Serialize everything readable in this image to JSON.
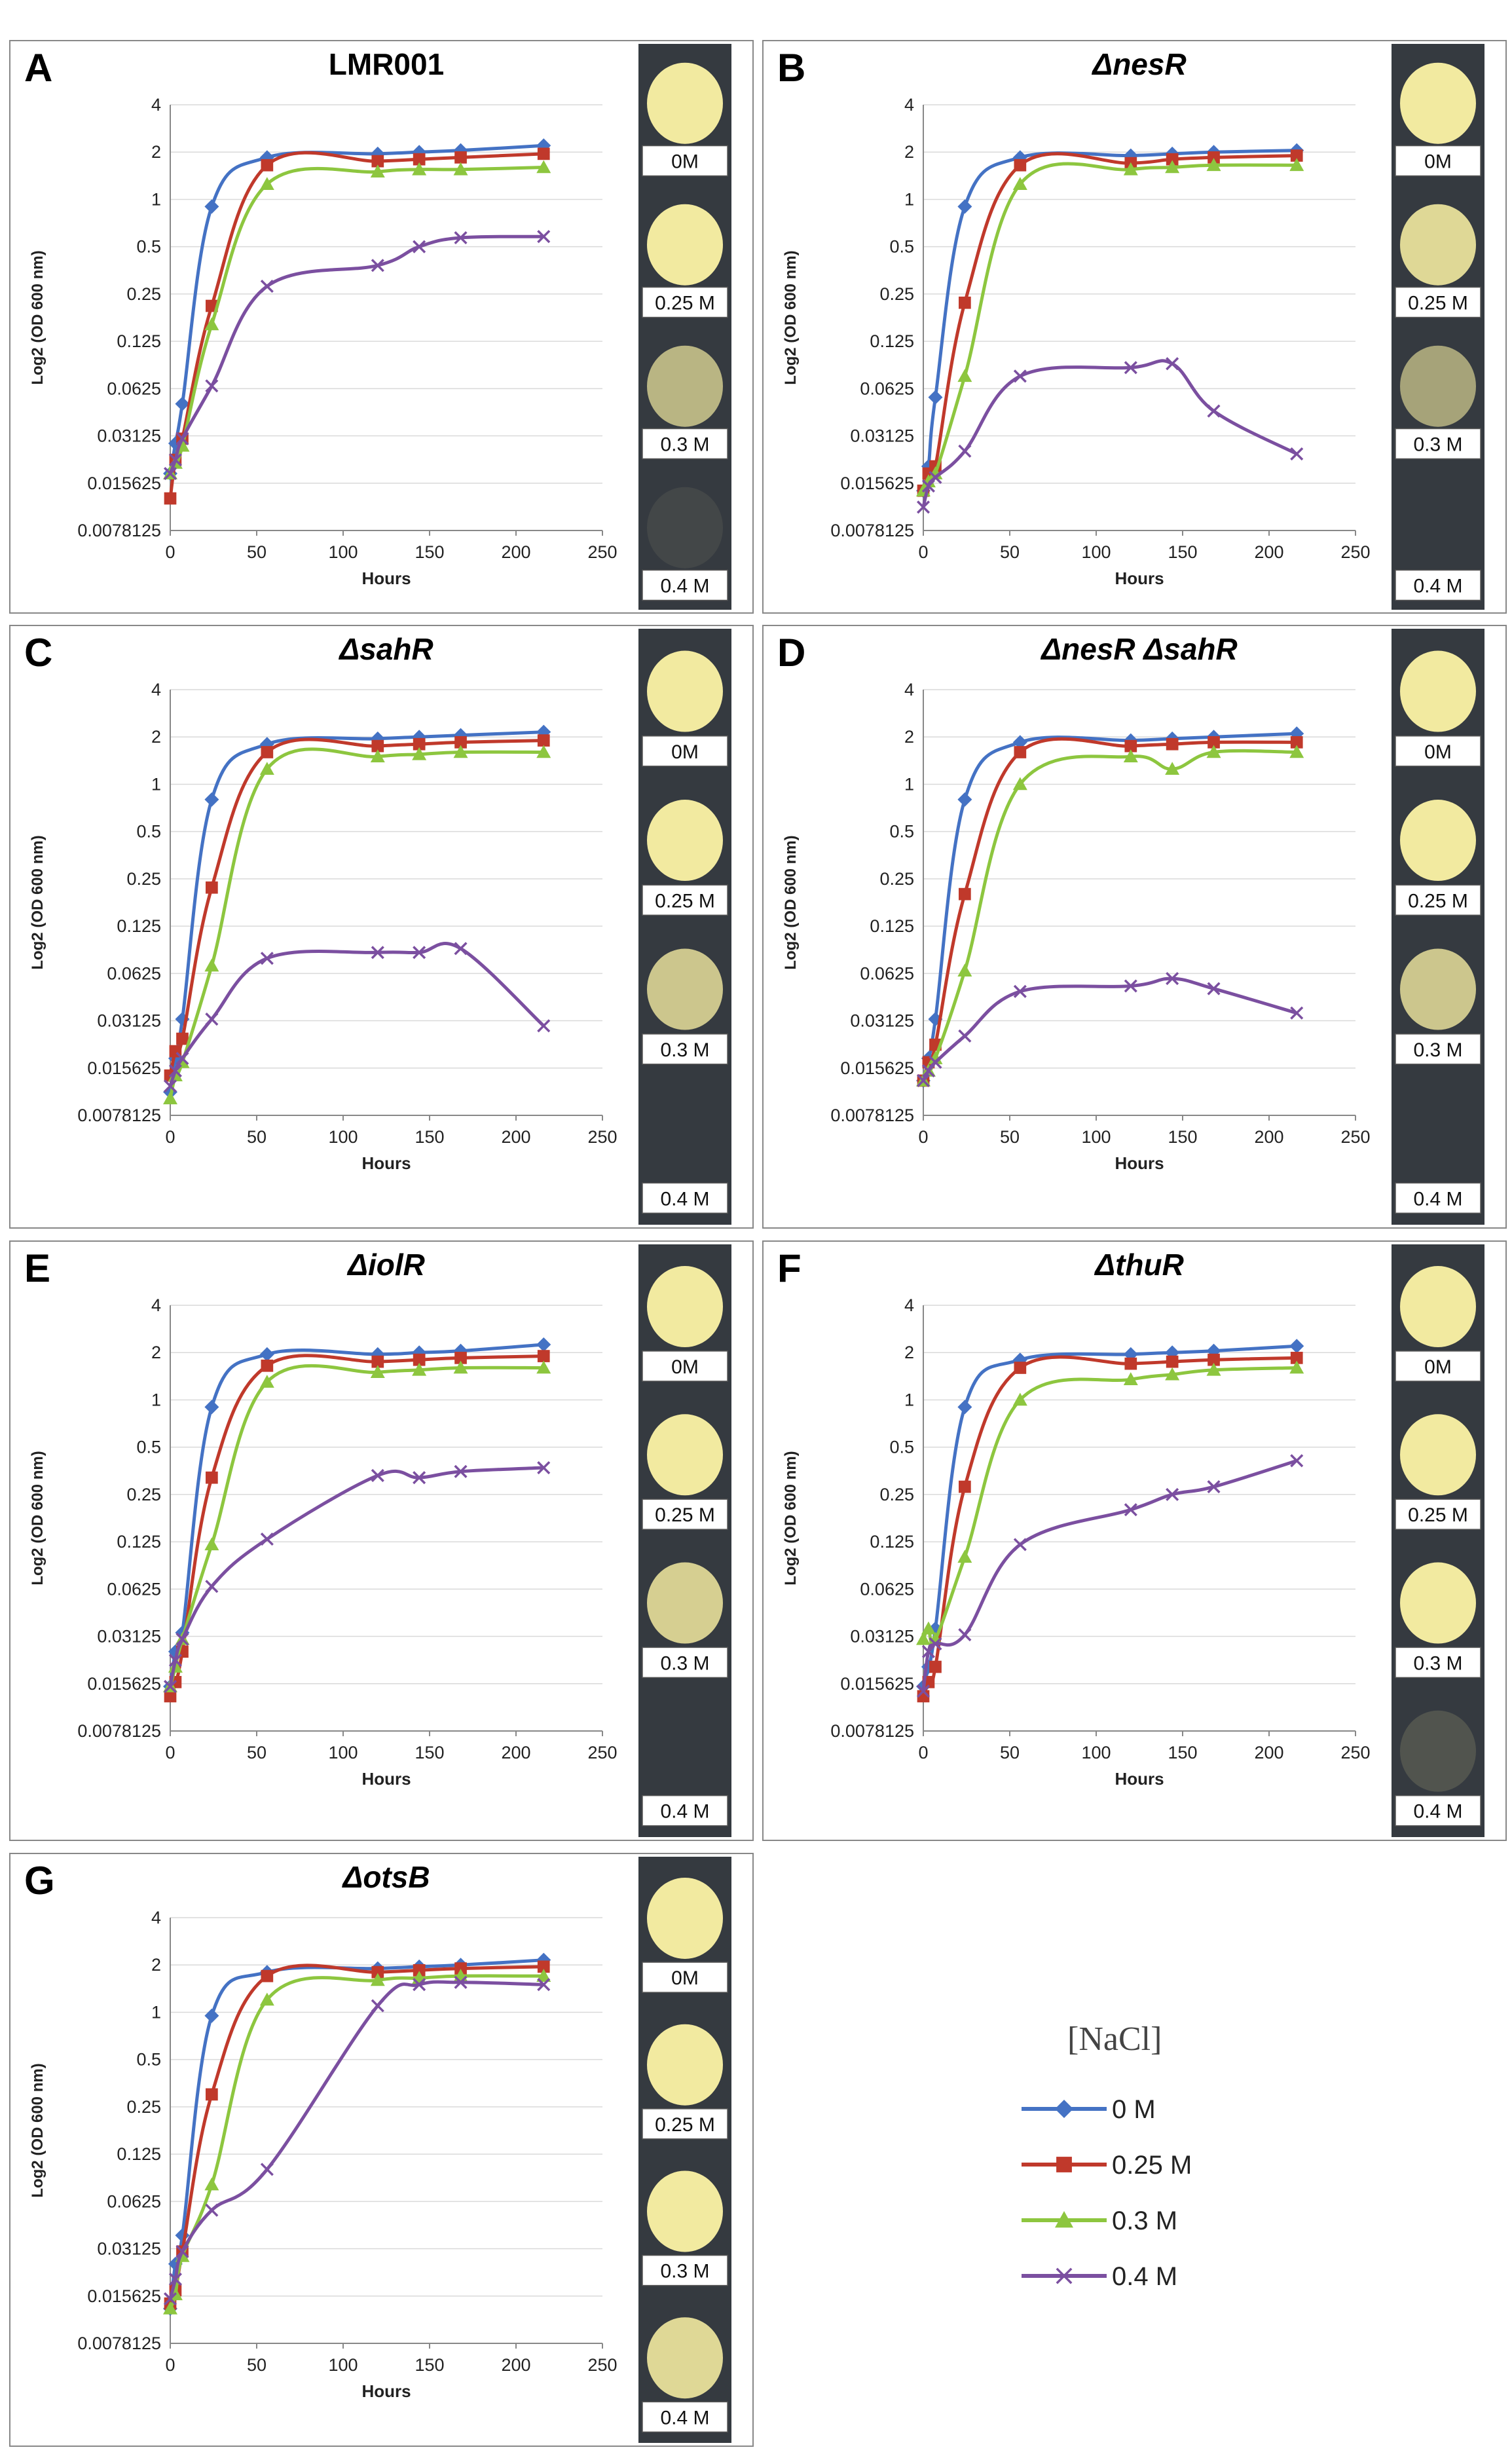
{
  "colors": {
    "series": [
      "#4472c4",
      "#c0392b",
      "#8dc63f",
      "#7b4fa0"
    ],
    "gridline": "#d9d9d9",
    "panel_border": "#888888",
    "strip_bg": "#353a40",
    "colony": "#f2eaa0",
    "label_box_bg": "#ffffff"
  },
  "common": {
    "xlabel": "Hours",
    "ylabel": "Log2 (OD 600 nm)",
    "yticks": [
      "4",
      "2",
      "1",
      "0.5",
      "0.25",
      "0.125",
      "0.0625",
      "0.03125",
      "0.015625",
      "0.0078125"
    ],
    "xticks": [
      "0",
      "50",
      "100",
      "150",
      "200",
      "250"
    ],
    "ytick_values": [
      4,
      2,
      1,
      0.5,
      0.25,
      0.125,
      0.0625,
      0.03125,
      0.015625,
      0.0078125
    ],
    "xtick_values": [
      0,
      50,
      100,
      150,
      200,
      250
    ],
    "xlim": [
      0,
      250
    ],
    "ylim": [
      0.0078125,
      4
    ],
    "yscale": "log2",
    "colony_labels": [
      "0M",
      "0.25 M",
      "0.3 M",
      "0.4 M"
    ],
    "hours": [
      0,
      3,
      7,
      24,
      56,
      120,
      144,
      168,
      216
    ]
  },
  "legend": {
    "title": "[NaCl]",
    "entries": [
      "0 M",
      "0.25 M",
      "0.3 M",
      "0.4 M"
    ],
    "markers": [
      "diamond",
      "square",
      "triangle",
      "x"
    ]
  },
  "chart_data": [
    {
      "type": "line",
      "letter": "A",
      "title": "LMR001",
      "title_italic": false,
      "x": [
        0,
        3,
        7,
        24,
        56,
        120,
        144,
        168,
        216
      ],
      "series": [
        {
          "name": "0 M",
          "values": [
            0.018,
            0.028,
            0.05,
            0.9,
            1.85,
            1.95,
            2.0,
            2.05,
            2.2
          ]
        },
        {
          "name": "0.25 M",
          "values": [
            0.0125,
            0.022,
            0.03,
            0.21,
            1.65,
            1.75,
            1.8,
            1.85,
            1.95
          ]
        },
        {
          "name": "0.3 M",
          "values": [
            0.018,
            0.021,
            0.027,
            0.16,
            1.25,
            1.5,
            1.55,
            1.55,
            1.6
          ]
        },
        {
          "name": "0.4 M",
          "values": [
            0.018,
            0.022,
            0.03,
            0.065,
            0.28,
            0.38,
            0.5,
            0.57,
            0.58
          ]
        }
      ],
      "colony": [
        1,
        1,
        0.7,
        0.08
      ]
    },
    {
      "type": "line",
      "letter": "B",
      "title": "ΔnesR",
      "title_italic": true,
      "x": [
        0,
        3,
        7,
        24,
        56,
        120,
        144,
        168,
        216
      ],
      "series": [
        {
          "name": "0 M",
          "values": [
            0.014,
            0.02,
            0.055,
            0.9,
            1.85,
            1.9,
            1.95,
            2.0,
            2.05
          ]
        },
        {
          "name": "0.25 M",
          "values": [
            0.014,
            0.018,
            0.02,
            0.22,
            1.65,
            1.7,
            1.8,
            1.85,
            1.9
          ]
        },
        {
          "name": "0.3 M",
          "values": [
            0.014,
            0.016,
            0.018,
            0.075,
            1.25,
            1.55,
            1.6,
            1.65,
            1.65
          ]
        },
        {
          "name": "0.4 M",
          "values": [
            0.011,
            0.015,
            0.017,
            0.025,
            0.075,
            0.085,
            0.09,
            0.045,
            0.024
          ]
        }
      ],
      "colony": [
        1,
        0.9,
        0.6,
        0
      ]
    },
    {
      "type": "line",
      "letter": "C",
      "title": "ΔsahR",
      "title_italic": true,
      "x": [
        0,
        3,
        7,
        24,
        56,
        120,
        144,
        168,
        216
      ],
      "series": [
        {
          "name": "0 M",
          "values": [
            0.011,
            0.018,
            0.032,
            0.8,
            1.8,
            1.95,
            2.0,
            2.05,
            2.15
          ]
        },
        {
          "name": "0.25 M",
          "values": [
            0.014,
            0.02,
            0.024,
            0.22,
            1.6,
            1.75,
            1.8,
            1.85,
            1.9
          ]
        },
        {
          "name": "0.3 M",
          "values": [
            0.01,
            0.014,
            0.017,
            0.07,
            1.25,
            1.5,
            1.55,
            1.6,
            1.6
          ]
        },
        {
          "name": "0.4 M",
          "values": [
            0.012,
            0.015,
            0.018,
            0.032,
            0.078,
            0.085,
            0.085,
            0.09,
            0.029
          ]
        }
      ],
      "colony": [
        1,
        1,
        0.8,
        0
      ]
    },
    {
      "type": "line",
      "letter": "D",
      "title": "ΔnesR ΔsahR",
      "title_italic": true,
      "x": [
        0,
        3,
        7,
        24,
        56,
        120,
        144,
        168,
        216
      ],
      "series": [
        {
          "name": "0 M",
          "values": [
            0.013,
            0.018,
            0.032,
            0.8,
            1.85,
            1.9,
            1.95,
            2.0,
            2.1
          ]
        },
        {
          "name": "0.25 M",
          "values": [
            0.013,
            0.017,
            0.022,
            0.2,
            1.6,
            1.75,
            1.8,
            1.85,
            1.85
          ]
        },
        {
          "name": "0.3 M",
          "values": [
            0.013,
            0.015,
            0.018,
            0.065,
            1.0,
            1.5,
            1.25,
            1.6,
            1.6
          ]
        },
        {
          "name": "0.4 M",
          "values": [
            0.013,
            0.015,
            0.017,
            0.025,
            0.048,
            0.052,
            0.058,
            0.05,
            0.035
          ]
        }
      ],
      "colony": [
        1,
        1,
        0.8,
        0
      ]
    },
    {
      "type": "line",
      "letter": "E",
      "title": "ΔiolR",
      "title_italic": true,
      "x": [
        0,
        3,
        7,
        24,
        56,
        120,
        144,
        168,
        216
      ],
      "series": [
        {
          "name": "0 M",
          "values": [
            0.015,
            0.025,
            0.033,
            0.9,
            1.95,
            1.95,
            2.0,
            2.05,
            2.25
          ]
        },
        {
          "name": "0.25 M",
          "values": [
            0.013,
            0.016,
            0.025,
            0.32,
            1.65,
            1.75,
            1.8,
            1.85,
            1.9
          ]
        },
        {
          "name": "0.3 M",
          "values": [
            0.015,
            0.02,
            0.03,
            0.12,
            1.3,
            1.5,
            1.55,
            1.6,
            1.6
          ]
        },
        {
          "name": "0.4 M",
          "values": [
            0.015,
            0.022,
            0.03,
            0.065,
            0.13,
            0.33,
            0.32,
            0.35,
            0.37
          ]
        }
      ],
      "colony": [
        1,
        1,
        0.85,
        0
      ]
    },
    {
      "type": "line",
      "letter": "F",
      "title": "ΔthuR",
      "title_italic": true,
      "x": [
        0,
        3,
        7,
        24,
        56,
        120,
        144,
        168,
        216
      ],
      "series": [
        {
          "name": "0 M",
          "values": [
            0.015,
            0.02,
            0.035,
            0.9,
            1.8,
            1.95,
            2.0,
            2.05,
            2.2
          ]
        },
        {
          "name": "0.25 M",
          "values": [
            0.013,
            0.016,
            0.02,
            0.28,
            1.6,
            1.7,
            1.75,
            1.8,
            1.85
          ]
        },
        {
          "name": "0.3 M",
          "values": [
            0.03,
            0.035,
            0.03,
            0.1,
            1.0,
            1.35,
            1.45,
            1.55,
            1.6
          ]
        },
        {
          "name": "0.4 M",
          "values": [
            0.014,
            0.025,
            0.028,
            0.032,
            0.12,
            0.2,
            0.25,
            0.28,
            0.41
          ]
        }
      ],
      "colony": [
        1,
        1,
        1,
        0.15
      ]
    },
    {
      "type": "line",
      "letter": "G",
      "title": "ΔotsB",
      "title_italic": true,
      "x": [
        0,
        3,
        7,
        24,
        56,
        120,
        144,
        168,
        216
      ],
      "series": [
        {
          "name": "0 M",
          "values": [
            0.013,
            0.025,
            0.038,
            0.95,
            1.8,
            1.9,
            1.95,
            2.0,
            2.15
          ]
        },
        {
          "name": "0.25 M",
          "values": [
            0.014,
            0.017,
            0.03,
            0.3,
            1.7,
            1.8,
            1.85,
            1.9,
            1.95
          ]
        },
        {
          "name": "0.3 M",
          "values": [
            0.013,
            0.016,
            0.028,
            0.08,
            1.2,
            1.6,
            1.65,
            1.7,
            1.7
          ]
        },
        {
          "name": "0.4 M",
          "values": [
            0.015,
            0.02,
            0.03,
            0.055,
            0.1,
            1.1,
            1.5,
            1.55,
            1.5
          ]
        }
      ],
      "colony": [
        1,
        1,
        1,
        0.9
      ]
    }
  ]
}
